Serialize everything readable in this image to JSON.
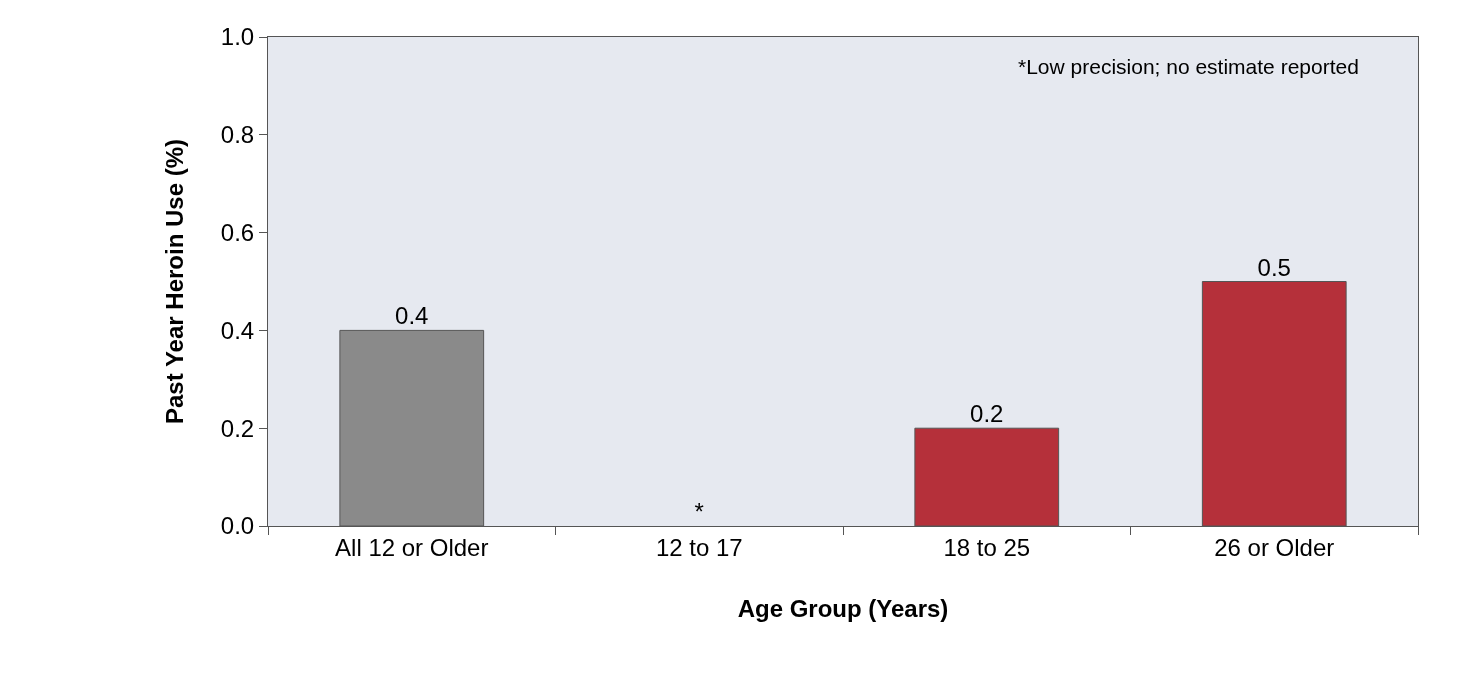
{
  "chart_data": {
    "type": "bar",
    "xlabel": "Age Group (Years)",
    "ylabel": "Past Year Heroin Use (%)",
    "categories": [
      "All 12 or Older",
      "12 to 17",
      "18 to 25",
      "26 or Older"
    ],
    "values": [
      0.4,
      null,
      0.2,
      0.5
    ],
    "colors": [
      "#8a8a8a",
      null,
      "#b5303a",
      "#b5303a"
    ],
    "value_labels": [
      "0.4",
      "*",
      "0.2",
      "0.5"
    ],
    "ylim": [
      0,
      1
    ],
    "yticks": [
      {
        "value": 0,
        "label": "0.0"
      },
      0.2,
      0.4,
      0.6,
      0.8,
      {
        "value": 1,
        "label": "1.0"
      }
    ],
    "grid": false,
    "annotations": [
      "*Low precision; no estimate reported"
    ]
  }
}
